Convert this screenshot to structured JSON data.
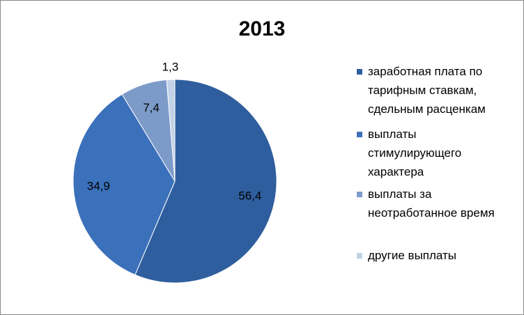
{
  "chart_data": {
    "type": "pie",
    "title": "2013",
    "categories": [
      "заработная плата по тарифным ставкам, сдельным расценкам",
      "выплаты стимулирующего характера",
      "выплаты за неотработанное время",
      "другие выплаты"
    ],
    "values": [
      56.4,
      34.9,
      7.4,
      1.3
    ],
    "value_labels": [
      "56,4",
      "34,9",
      "7,4",
      "1,3"
    ],
    "colors": [
      "#2f5e9e",
      "#3b70ba",
      "#7d9bc9",
      "#c4d2e8"
    ],
    "legend": "right"
  }
}
